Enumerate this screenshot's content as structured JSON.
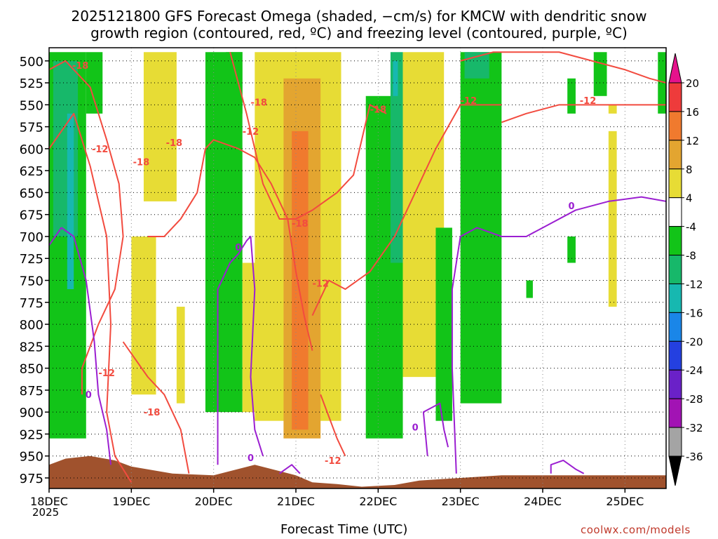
{
  "header": {
    "title_line1": "2025121800 GFS Forecast Omega (shaded, −cm/s) for KMCW with dendritic snow",
    "title_line2": "growth region (contoured, red, ºC) and freezing level (contoured, purple, ºC)"
  },
  "footer": {
    "xlabel": "Forecast Time (UTC)",
    "year": "2025",
    "credit": "coolwx.com/models"
  },
  "chart_data": {
    "type": "heatmap",
    "title": "2025121800 GFS Forecast Omega (shaded, −cm/s) for KMCW with dendritic snow growth region (contoured, red, ºC) and freezing level (contoured, purple, ºC)",
    "xlabel": "Forecast Time (UTC)",
    "ylabel": "Pressure (hPa)",
    "x_ticks": [
      "18DEC",
      "19DEC",
      "20DEC",
      "21DEC",
      "22DEC",
      "23DEC",
      "24DEC",
      "25DEC"
    ],
    "x_range_days": [
      0,
      7.5
    ],
    "y_ticks": [
      500,
      525,
      550,
      575,
      600,
      625,
      650,
      675,
      700,
      725,
      750,
      775,
      800,
      825,
      850,
      875,
      900,
      925,
      950,
      975
    ],
    "y_range_hpa": [
      485,
      987
    ],
    "colorbar": {
      "ticks": [
        20,
        16,
        12,
        8,
        4,
        -4,
        -8,
        -12,
        -16,
        -20,
        -24,
        -28,
        -32,
        -36
      ],
      "bins": [
        {
          "lo": 16,
          "hi": 20,
          "color": "#ee3b3b"
        },
        {
          "lo": 12,
          "hi": 16,
          "color": "#f07a2e"
        },
        {
          "lo": 8,
          "hi": 12,
          "color": "#e3a530"
        },
        {
          "lo": 4,
          "hi": 8,
          "color": "#e7dc35"
        },
        {
          "lo": -4,
          "hi": 4,
          "color": "#ffffff"
        },
        {
          "lo": -8,
          "hi": -4,
          "color": "#12c418"
        },
        {
          "lo": -12,
          "hi": -8,
          "color": "#17b86a"
        },
        {
          "lo": -16,
          "hi": -12,
          "color": "#17b8b0"
        },
        {
          "lo": -20,
          "hi": -16,
          "color": "#1a86e8"
        },
        {
          "lo": -24,
          "hi": -20,
          "color": "#2440e0"
        },
        {
          "lo": -28,
          "hi": -24,
          "color": "#6a21c8"
        },
        {
          "lo": -32,
          "hi": -28,
          "color": "#a213b4"
        },
        {
          "lo": -36,
          "hi": -32,
          "color": "#a4a4a4"
        }
      ],
      "top_arrow_color": "#e5128c",
      "bottom_arrow_color": "#000000"
    },
    "omega_regions": [
      {
        "t0": 0.0,
        "t1": 0.45,
        "p0": 490,
        "p1": 930,
        "level": -8
      },
      {
        "t0": 0.05,
        "t1": 0.35,
        "p0": 500,
        "p1": 700,
        "level": -12
      },
      {
        "t0": 0.22,
        "t1": 0.3,
        "p0": 560,
        "p1": 760,
        "level": -16
      },
      {
        "t0": 0.45,
        "t1": 0.65,
        "p0": 490,
        "p1": 560,
        "level": -8
      },
      {
        "t0": 1.15,
        "t1": 1.55,
        "p0": 490,
        "p1": 660,
        "level": 4
      },
      {
        "t0": 1.0,
        "t1": 1.3,
        "p0": 700,
        "p1": 880,
        "level": 4
      },
      {
        "t0": 1.55,
        "t1": 1.65,
        "p0": 780,
        "p1": 890,
        "level": 4
      },
      {
        "t0": 1.9,
        "t1": 2.35,
        "p0": 490,
        "p1": 900,
        "level": -8
      },
      {
        "t0": 2.15,
        "t1": 2.35,
        "p0": 490,
        "p1": 560,
        "level": -8
      },
      {
        "t0": 2.35,
        "t1": 2.55,
        "p0": 730,
        "p1": 900,
        "level": 4
      },
      {
        "t0": 2.5,
        "t1": 3.55,
        "p0": 490,
        "p1": 910,
        "level": 4
      },
      {
        "t0": 2.85,
        "t1": 3.3,
        "p0": 520,
        "p1": 930,
        "level": 8
      },
      {
        "t0": 2.95,
        "t1": 3.15,
        "p0": 580,
        "p1": 920,
        "level": 12
      },
      {
        "t0": 3.85,
        "t1": 4.3,
        "p0": 540,
        "p1": 930,
        "level": -8
      },
      {
        "t0": 4.15,
        "t1": 4.3,
        "p0": 490,
        "p1": 730,
        "level": -12
      },
      {
        "t0": 4.18,
        "t1": 4.24,
        "p0": 500,
        "p1": 540,
        "level": -16
      },
      {
        "t0": 4.3,
        "t1": 4.8,
        "p0": 490,
        "p1": 860,
        "level": 4
      },
      {
        "t0": 4.7,
        "t1": 4.9,
        "p0": 690,
        "p1": 910,
        "level": -8
      },
      {
        "t0": 5.0,
        "t1": 5.5,
        "p0": 490,
        "p1": 890,
        "level": -8
      },
      {
        "t0": 5.05,
        "t1": 5.35,
        "p0": 490,
        "p1": 520,
        "level": -12
      },
      {
        "t0": 6.3,
        "t1": 6.4,
        "p0": 520,
        "p1": 560,
        "level": -8
      },
      {
        "t0": 6.3,
        "t1": 6.4,
        "p0": 700,
        "p1": 730,
        "level": -8
      },
      {
        "t0": 5.8,
        "t1": 5.88,
        "p0": 750,
        "p1": 770,
        "level": -8
      },
      {
        "t0": 6.62,
        "t1": 6.78,
        "p0": 490,
        "p1": 540,
        "level": -8
      },
      {
        "t0": 6.8,
        "t1": 6.9,
        "p0": 580,
        "p1": 780,
        "level": 4
      },
      {
        "t0": 6.8,
        "t1": 6.9,
        "p0": 550,
        "p1": 560,
        "level": 4
      },
      {
        "t0": 7.4,
        "t1": 7.5,
        "p0": 490,
        "p1": 560,
        "level": -8
      }
    ],
    "red_contours": [
      {
        "level": -18,
        "points": [
          [
            0.0,
            510
          ],
          [
            0.2,
            500
          ],
          [
            0.5,
            530
          ],
          [
            0.7,
            590
          ],
          [
            0.85,
            640
          ],
          [
            0.9,
            700
          ],
          [
            0.8,
            760
          ],
          [
            0.6,
            800
          ],
          [
            0.4,
            850
          ],
          [
            0.4,
            880
          ]
        ]
      },
      {
        "level": -12,
        "points": [
          [
            0.0,
            600
          ],
          [
            0.3,
            560
          ],
          [
            0.5,
            620
          ],
          [
            0.7,
            700
          ],
          [
            0.75,
            800
          ],
          [
            0.7,
            900
          ],
          [
            0.8,
            950
          ],
          [
            1.0,
            980
          ]
        ]
      },
      {
        "level": -12,
        "points": [
          [
            0.9,
            820
          ],
          [
            1.2,
            860
          ],
          [
            1.4,
            880
          ],
          [
            1.6,
            920
          ],
          [
            1.7,
            970
          ]
        ]
      },
      {
        "level": -18,
        "points": [
          [
            1.2,
            700
          ],
          [
            1.4,
            700
          ],
          [
            1.6,
            680
          ],
          [
            1.8,
            650
          ],
          [
            1.9,
            600
          ],
          [
            2.0,
            590
          ],
          [
            2.3,
            600
          ],
          [
            2.5,
            610
          ],
          [
            2.7,
            640
          ],
          [
            2.9,
            680
          ],
          [
            3.0,
            740
          ],
          [
            3.1,
            790
          ],
          [
            3.2,
            830
          ]
        ]
      },
      {
        "level": -18,
        "points": [
          [
            2.2,
            490
          ],
          [
            2.4,
            560
          ],
          [
            2.6,
            640
          ],
          [
            2.8,
            680
          ],
          [
            3.0,
            680
          ],
          [
            3.2,
            670
          ],
          [
            3.5,
            650
          ],
          [
            3.7,
            630
          ],
          [
            3.8,
            590
          ],
          [
            3.9,
            550
          ],
          [
            4.1,
            560
          ]
        ]
      },
      {
        "level": -12,
        "points": [
          [
            3.3,
            880
          ],
          [
            3.5,
            930
          ],
          [
            3.6,
            950
          ]
        ]
      },
      {
        "level": -12,
        "points": [
          [
            3.2,
            790
          ],
          [
            3.4,
            750
          ],
          [
            3.6,
            760
          ],
          [
            3.9,
            740
          ],
          [
            4.2,
            700
          ],
          [
            4.4,
            660
          ],
          [
            4.7,
            600
          ],
          [
            5.0,
            550
          ],
          [
            5.3,
            550
          ],
          [
            5.5,
            550
          ]
        ]
      },
      {
        "level": -12,
        "points": [
          [
            5.0,
            500
          ],
          [
            5.4,
            490
          ],
          [
            5.8,
            490
          ],
          [
            6.2,
            490
          ],
          [
            6.6,
            500
          ],
          [
            7.0,
            510
          ],
          [
            7.3,
            520
          ],
          [
            7.5,
            525
          ]
        ]
      },
      {
        "level": -12,
        "points": [
          [
            5.5,
            570
          ],
          [
            5.8,
            560
          ],
          [
            6.2,
            550
          ],
          [
            6.6,
            550
          ],
          [
            7.0,
            550
          ],
          [
            7.4,
            550
          ],
          [
            7.5,
            550
          ]
        ]
      }
    ],
    "red_labels": [
      {
        "text": "-18",
        "t": 0.38,
        "p": 505
      },
      {
        "text": "-12",
        "t": 0.62,
        "p": 600
      },
      {
        "text": "-18",
        "t": 1.12,
        "p": 615
      },
      {
        "text": "-18",
        "t": 1.52,
        "p": 593
      },
      {
        "text": "-18",
        "t": 2.55,
        "p": 547
      },
      {
        "text": "-12",
        "t": 2.45,
        "p": 580
      },
      {
        "text": "-18",
        "t": 3.05,
        "p": 685
      },
      {
        "text": "-12",
        "t": 3.3,
        "p": 753
      },
      {
        "text": "-12",
        "t": 3.45,
        "p": 955
      },
      {
        "text": "-18",
        "t": 4.0,
        "p": 555
      },
      {
        "text": "-12",
        "t": 5.1,
        "p": 545
      },
      {
        "text": "-12",
        "t": 6.55,
        "p": 545
      },
      {
        "text": "-12",
        "t": 0.7,
        "p": 855
      },
      {
        "text": "-18",
        "t": 1.25,
        "p": 900
      }
    ],
    "purple_contours": [
      {
        "level": 0,
        "points": [
          [
            0.0,
            710
          ],
          [
            0.15,
            690
          ],
          [
            0.3,
            700
          ],
          [
            0.45,
            750
          ],
          [
            0.55,
            820
          ],
          [
            0.6,
            880
          ],
          [
            0.7,
            920
          ],
          [
            0.75,
            960
          ]
        ]
      },
      {
        "level": 0,
        "points": [
          [
            2.05,
            960
          ],
          [
            2.05,
            860
          ],
          [
            2.05,
            760
          ],
          [
            2.2,
            730
          ],
          [
            2.3,
            720
          ],
          [
            2.4,
            705
          ],
          [
            2.45,
            700
          ],
          [
            2.5,
            760
          ],
          [
            2.45,
            860
          ],
          [
            2.5,
            920
          ],
          [
            2.6,
            950
          ]
        ]
      },
      {
        "level": 0,
        "points": [
          [
            2.8,
            970
          ],
          [
            2.95,
            960
          ],
          [
            3.05,
            970
          ]
        ]
      },
      {
        "level": 0,
        "points": [
          [
            4.6,
            950
          ],
          [
            4.55,
            900
          ],
          [
            4.75,
            890
          ],
          [
            4.8,
            920
          ],
          [
            4.85,
            940
          ]
        ]
      },
      {
        "level": 0,
        "points": [
          [
            4.95,
            970
          ],
          [
            4.9,
            850
          ],
          [
            4.9,
            760
          ],
          [
            5.0,
            700
          ],
          [
            5.2,
            690
          ],
          [
            5.5,
            700
          ],
          [
            5.8,
            700
          ],
          [
            6.0,
            690
          ],
          [
            6.4,
            670
          ],
          [
            6.8,
            660
          ],
          [
            7.2,
            655
          ],
          [
            7.5,
            660
          ]
        ]
      },
      {
        "level": 0,
        "points": [
          [
            6.1,
            970
          ],
          [
            6.1,
            960
          ],
          [
            6.25,
            955
          ],
          [
            6.4,
            965
          ],
          [
            6.5,
            970
          ]
        ]
      }
    ],
    "purple_labels": [
      {
        "text": "0",
        "t": 0.48,
        "p": 880
      },
      {
        "text": "0",
        "t": 2.3,
        "p": 712
      },
      {
        "text": "0",
        "t": 2.45,
        "p": 952
      },
      {
        "text": "0",
        "t": 4.45,
        "p": 917
      },
      {
        "text": "0",
        "t": 6.35,
        "p": 665
      }
    ],
    "terrain_surface": [
      [
        0.0,
        960
      ],
      [
        0.2,
        953
      ],
      [
        0.5,
        950
      ],
      [
        0.8,
        955
      ],
      [
        1.0,
        962
      ],
      [
        1.5,
        970
      ],
      [
        2.0,
        972
      ],
      [
        2.5,
        960
      ],
      [
        3.0,
        972
      ],
      [
        3.2,
        980
      ],
      [
        3.5,
        982
      ],
      [
        3.8,
        985
      ],
      [
        4.2,
        983
      ],
      [
        4.5,
        978
      ],
      [
        5.0,
        975
      ],
      [
        5.5,
        972
      ],
      [
        6.0,
        972
      ],
      [
        6.5,
        972
      ],
      [
        7.0,
        972
      ],
      [
        7.5,
        972
      ]
    ]
  }
}
